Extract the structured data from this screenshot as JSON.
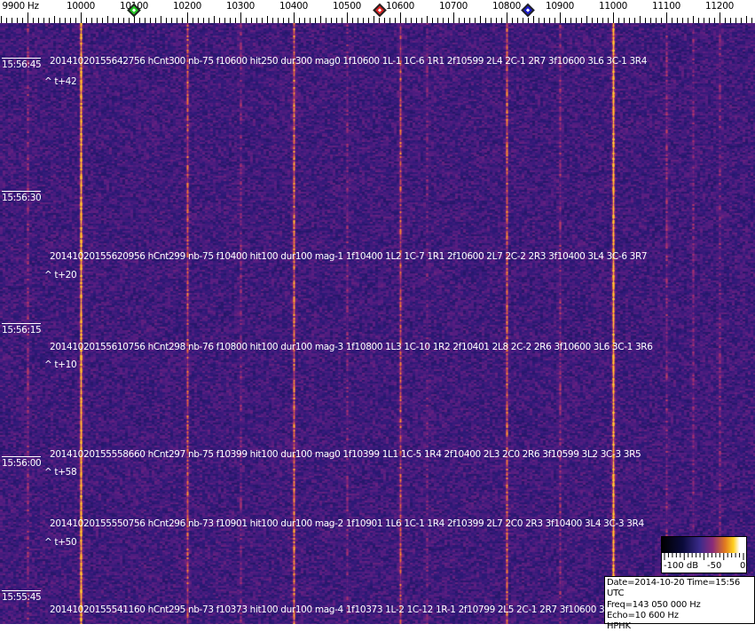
{
  "frequency_axis": {
    "unit": "Hz",
    "ticks": [
      {
        "value": 9900,
        "label": "9900 Hz"
      },
      {
        "value": 10000,
        "label": "10000"
      },
      {
        "value": 10100,
        "label": "10100"
      },
      {
        "value": 10200,
        "label": "10200"
      },
      {
        "value": 10300,
        "label": "10300"
      },
      {
        "value": 10400,
        "label": "10400"
      },
      {
        "value": 10500,
        "label": "10500"
      },
      {
        "value": 10600,
        "label": "10600"
      },
      {
        "value": 10700,
        "label": "10700"
      },
      {
        "value": 10800,
        "label": "10800"
      },
      {
        "value": 10900,
        "label": "10900"
      },
      {
        "value": 11000,
        "label": "11000"
      },
      {
        "value": 11100,
        "label": "11100"
      },
      {
        "value": 11200,
        "label": "11200"
      }
    ],
    "markers": [
      {
        "name": "green",
        "freq": 10100,
        "color": "#22cc22"
      },
      {
        "name": "red",
        "freq": 10562,
        "color": "#dd2222"
      },
      {
        "name": "blue",
        "freq": 10840,
        "color": "#1a1acc"
      }
    ]
  },
  "time_labels": [
    "15:56:45",
    "15:56:30",
    "15:56:15",
    "15:56:00",
    "15:55:45"
  ],
  "decodes": [
    {
      "text": "20141020155642756 hCnt300 nb-75 f10600 hit250 dur300 mag0 1f10600 1L-1 1C-6 1R1 2f10599 2L4 2C-1 2R7 3f10600 3L6 3C-1 3R4",
      "offset": "^ t+42"
    },
    {
      "text": "20141020155620956 hCnt299 nb-75 f10400 hit100 dur100 mag-1 1f10400 1L2 1C-7 1R1 2f10600 2L7 2C-2 2R3 3f10400 3L4 3C-6 3R7",
      "offset": "^ t+20"
    },
    {
      "text": "20141020155610756 hCnt298 nb-76 f10800 hit100 dur100 mag-3 1f10800 1L3 1C-10 1R2 2f10401 2L8 2C-2 2R6 3f10600 3L6 3C-1 3R6",
      "offset": "^ t+10"
    },
    {
      "text": "20141020155558660 hCnt297 nb-75 f10399 hit100 dur100 mag0 1f10399 1L1 1C-5 1R4 2f10400 2L3 2C0 2R6 3f10599 3L2 3C-3 3R5",
      "offset": "^ t+58"
    },
    {
      "text": "20141020155550756 hCnt296 nb-73 f10901 hit100 dur100 mag-2 1f10901 1L6 1C-1 1R4 2f10399 2L7 2C0 2R3 3f10400 3L4 3C-3 3R4",
      "offset": "^ t+50"
    },
    {
      "text": "20141020155541160 hCnt295 nb-73 f10373 hit100 dur100 mag-4 1f10373 1L-2 1C-12 1R-1 2f10799 2L5 2C-1 2R7 3f10600 3L9 3",
      "offset": ""
    }
  ],
  "colorbar": {
    "labels": [
      "-100 dB",
      "-50",
      "0"
    ],
    "colors": [
      "#000000",
      "#3a2a8a",
      "#e07a20",
      "#ffd020",
      "#ffffff"
    ]
  },
  "info": {
    "date_time": "Date=2014-10-20 Time=15:56 UTC",
    "freq": "Freq=143 050 000 Hz",
    "echo": "Echo=10 600 Hz",
    "station": "HPHK"
  },
  "spectrum_lines": [
    {
      "freq": 9900,
      "level": 0.3
    },
    {
      "freq": 10000,
      "level": 1.0
    },
    {
      "freq": 10200,
      "level": 0.55
    },
    {
      "freq": 10300,
      "level": 0.25
    },
    {
      "freq": 10400,
      "level": 0.7
    },
    {
      "freq": 10500,
      "level": 0.25
    },
    {
      "freq": 10600,
      "level": 0.55
    },
    {
      "freq": 10650,
      "level": 0.2
    },
    {
      "freq": 10800,
      "level": 0.6
    },
    {
      "freq": 10900,
      "level": 0.3
    },
    {
      "freq": 11000,
      "level": 1.0
    },
    {
      "freq": 11100,
      "level": 0.3
    },
    {
      "freq": 11150,
      "level": 0.25
    },
    {
      "freq": 11200,
      "level": 0.25
    }
  ]
}
